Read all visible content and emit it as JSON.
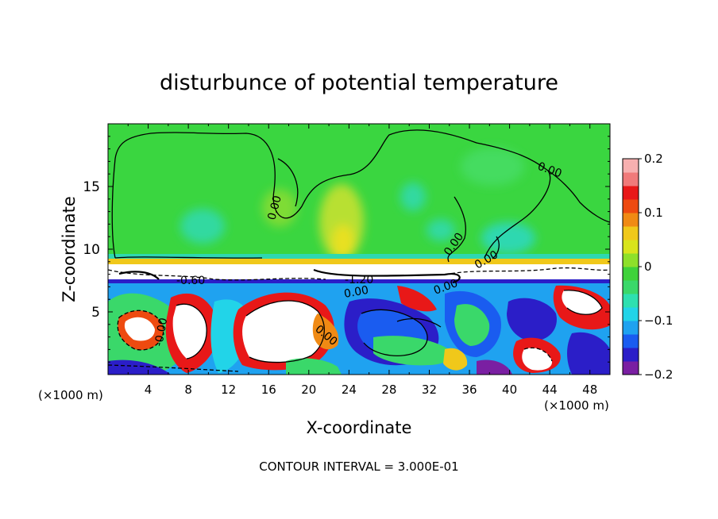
{
  "chart_data": {
    "type": "heatmap",
    "title": "disturbunce of potential temperature",
    "xlabel": "X-coordinate",
    "ylabel": "Z-coordinate",
    "x_unit_left": "(×1000 m)",
    "x_unit_right": "(×1000 m)",
    "x_ticks": [
      "4",
      "8",
      "12",
      "16",
      "20",
      "24",
      "28",
      "32",
      "36",
      "40",
      "44",
      "48"
    ],
    "y_ticks": [
      "5",
      "10",
      "15"
    ],
    "xlim": [
      0,
      50
    ],
    "ylim": [
      0,
      20
    ],
    "colorbar": {
      "ticks": [
        "0.2",
        "0.1",
        "0",
        "−0.1",
        "−0.2"
      ],
      "range": [
        -0.2,
        0.2
      ],
      "colors": [
        "#7a1fa2",
        "#2b1ec8",
        "#1a5cf0",
        "#1fa2f0",
        "#22d4e8",
        "#2ee0b0",
        "#3ad86a",
        "#3fd23a",
        "#8ee02a",
        "#d8e41c",
        "#f0c81a",
        "#f08a14",
        "#ee4a10",
        "#e81818",
        "#f07a7a",
        "#f7b0b0"
      ]
    },
    "contour_labels": [
      "0.00",
      "0.00",
      "0.00",
      "0.00",
      "-0.60",
      "-1.20",
      "0.00",
      "0.00",
      "-0.00",
      "0.00"
    ],
    "footer": "CONTOUR INTERVAL = 3.000E-01"
  }
}
